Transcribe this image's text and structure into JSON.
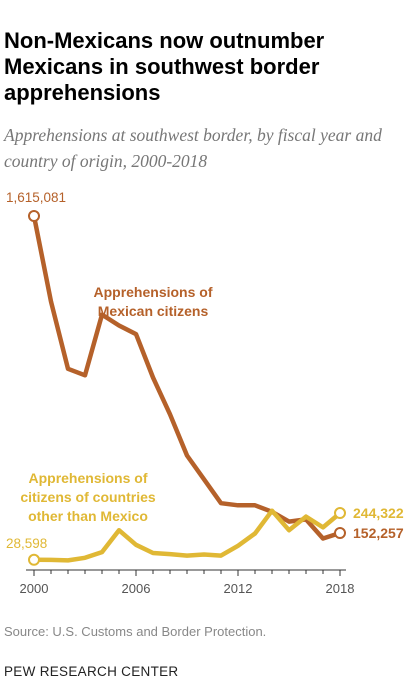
{
  "title": "Non-Mexicans now outnumber Mexicans in southwest border apprehensions",
  "subtitle": "Apprehensions at southwest border, by fiscal year and country of origin, 2000-2018",
  "source": "Source: U.S. Customs and Border Protection.",
  "organization": "PEW RESEARCH CENTER",
  "chart_data": {
    "type": "line",
    "x": [
      2000,
      2001,
      2002,
      2003,
      2004,
      2005,
      2006,
      2007,
      2008,
      2009,
      2010,
      2011,
      2012,
      2013,
      2014,
      2015,
      2016,
      2017,
      2018
    ],
    "xlim": [
      2000,
      2018
    ],
    "xticks": [
      "2000",
      "2006",
      "2012",
      "2018"
    ],
    "ylim": [
      0,
      1615081
    ],
    "grid": false,
    "legend": "none (direct labels)",
    "series": [
      {
        "key": "mexican",
        "name_lines": [
          "Apprehensions of",
          "Mexican citizens"
        ],
        "color": "#b5612a",
        "values": [
          1615081,
          1220000,
          910000,
          880000,
          1160000,
          1110000,
          1070000,
          870000,
          700000,
          510000,
          400000,
          290000,
          280000,
          280000,
          250000,
          205000,
          215000,
          127000,
          152257
        ],
        "start_label": "1,615,081",
        "end_label": "152,257"
      },
      {
        "key": "other",
        "name_lines": [
          "Apprehensions of",
          "citizens of countries",
          "other than Mexico"
        ],
        "color": "#e0b835",
        "values": [
          28598,
          28000,
          26000,
          38000,
          64000,
          165000,
          98000,
          60000,
          55000,
          48000,
          53000,
          48000,
          93000,
          150000,
          255000,
          165000,
          228000,
          178000,
          244322
        ],
        "start_label": "28,598",
        "end_label": "244,322"
      }
    ]
  }
}
